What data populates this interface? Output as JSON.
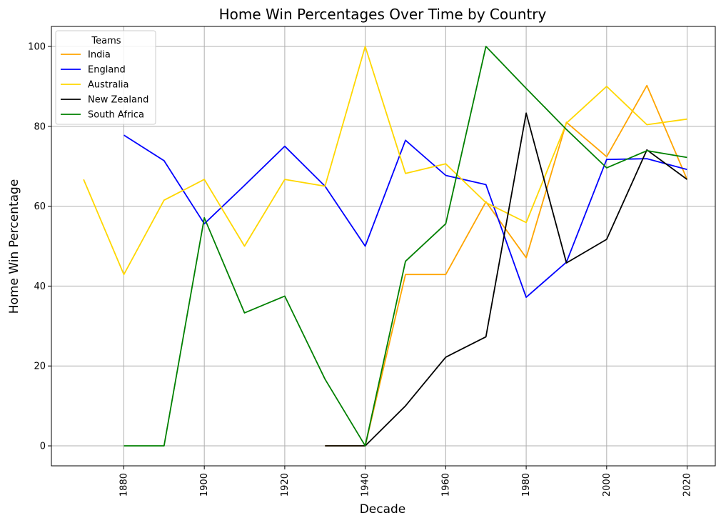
{
  "chart_data": {
    "type": "line",
    "title": "Home Win Percentages Over Time by Country",
    "xlabel": "Decade",
    "ylabel": "Home Win Percentage",
    "xlim": [
      1862,
      2027
    ],
    "ylim": [
      -5,
      105
    ],
    "xticks": [
      1880,
      1900,
      1920,
      1940,
      1960,
      1980,
      2000,
      2020
    ],
    "yticks": [
      0,
      20,
      40,
      60,
      80,
      100
    ],
    "grid": true,
    "legend": {
      "title": "Teams",
      "placement": "top-left"
    },
    "series": [
      {
        "name": "India",
        "color": "#ffa500",
        "x": [
          1930,
          1940,
          1950,
          1960,
          1970,
          1980,
          1990,
          2000,
          2010,
          2020
        ],
        "y": [
          0,
          0,
          42.9,
          42.9,
          61.1,
          47.1,
          81.0,
          72.4,
          90.2,
          66.7
        ]
      },
      {
        "name": "England",
        "color": "#0000ff",
        "x": [
          1880,
          1890,
          1900,
          1910,
          1920,
          1930,
          1940,
          1950,
          1960,
          1970,
          1980,
          1990,
          2000,
          2010,
          2020
        ],
        "y": [
          77.8,
          71.4,
          55.6,
          65.2,
          75.0,
          65.0,
          50.0,
          76.5,
          67.7,
          65.4,
          37.2,
          46.0,
          71.7,
          71.9,
          69.2
        ]
      },
      {
        "name": "Australia",
        "color": "#ffd700",
        "x": [
          1870,
          1880,
          1890,
          1900,
          1910,
          1920,
          1930,
          1940,
          1950,
          1960,
          1970,
          1980,
          1990,
          2000,
          2010,
          2020
        ],
        "y": [
          66.7,
          42.9,
          61.5,
          66.7,
          50.0,
          66.7,
          65.0,
          100.0,
          68.2,
          70.6,
          60.9,
          55.9,
          80.8,
          90.0,
          80.4,
          81.8
        ]
      },
      {
        "name": "New Zealand",
        "color": "#000000",
        "x": [
          1930,
          1940,
          1950,
          1960,
          1970,
          1980,
          1990,
          2000,
          2010,
          2020
        ],
        "y": [
          0,
          0,
          10.0,
          22.2,
          27.3,
          83.3,
          45.8,
          51.7,
          74.1,
          66.7
        ]
      },
      {
        "name": "South Africa",
        "color": "#008000",
        "x": [
          1880,
          1890,
          1900,
          1910,
          1920,
          1930,
          1940,
          1950,
          1960,
          1970,
          1980,
          1990,
          2000,
          2010,
          2020
        ],
        "y": [
          0,
          0,
          57.1,
          33.3,
          37.5,
          16.7,
          0,
          46.2,
          55.6,
          100.0,
          89.5,
          79.2,
          69.6,
          73.9,
          72.2
        ]
      }
    ]
  }
}
